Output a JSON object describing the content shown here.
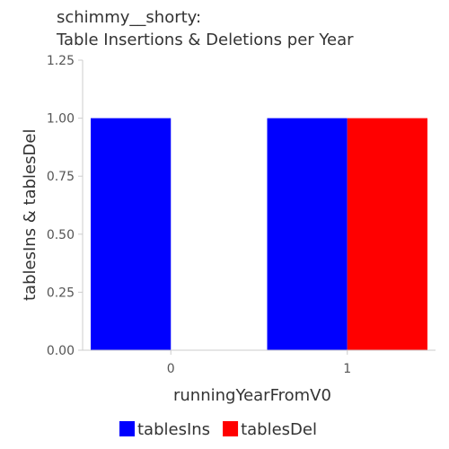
{
  "chart_data": {
    "type": "bar",
    "title_line1": "schimmy__shorty:",
    "title_line2": "Table Insertions & Deletions per Year",
    "xlabel": "runningYearFromV0",
    "ylabel": "tablesIns & tablesDel",
    "categories": [
      "0",
      "1"
    ],
    "ylim": [
      0,
      1.25
    ],
    "yticks": [
      "0.00",
      "0.25",
      "0.50",
      "0.75",
      "1.00",
      "1.25"
    ],
    "yticks_values": [
      0,
      0.25,
      0.5,
      0.75,
      1.0,
      1.25
    ],
    "grid": false,
    "legend_position": "bottom",
    "series": [
      {
        "name": "tablesIns",
        "color": "#0000ff",
        "values": [
          1,
          1
        ]
      },
      {
        "name": "tablesDel",
        "color": "#ff0000",
        "values": [
          0,
          1
        ]
      }
    ]
  }
}
